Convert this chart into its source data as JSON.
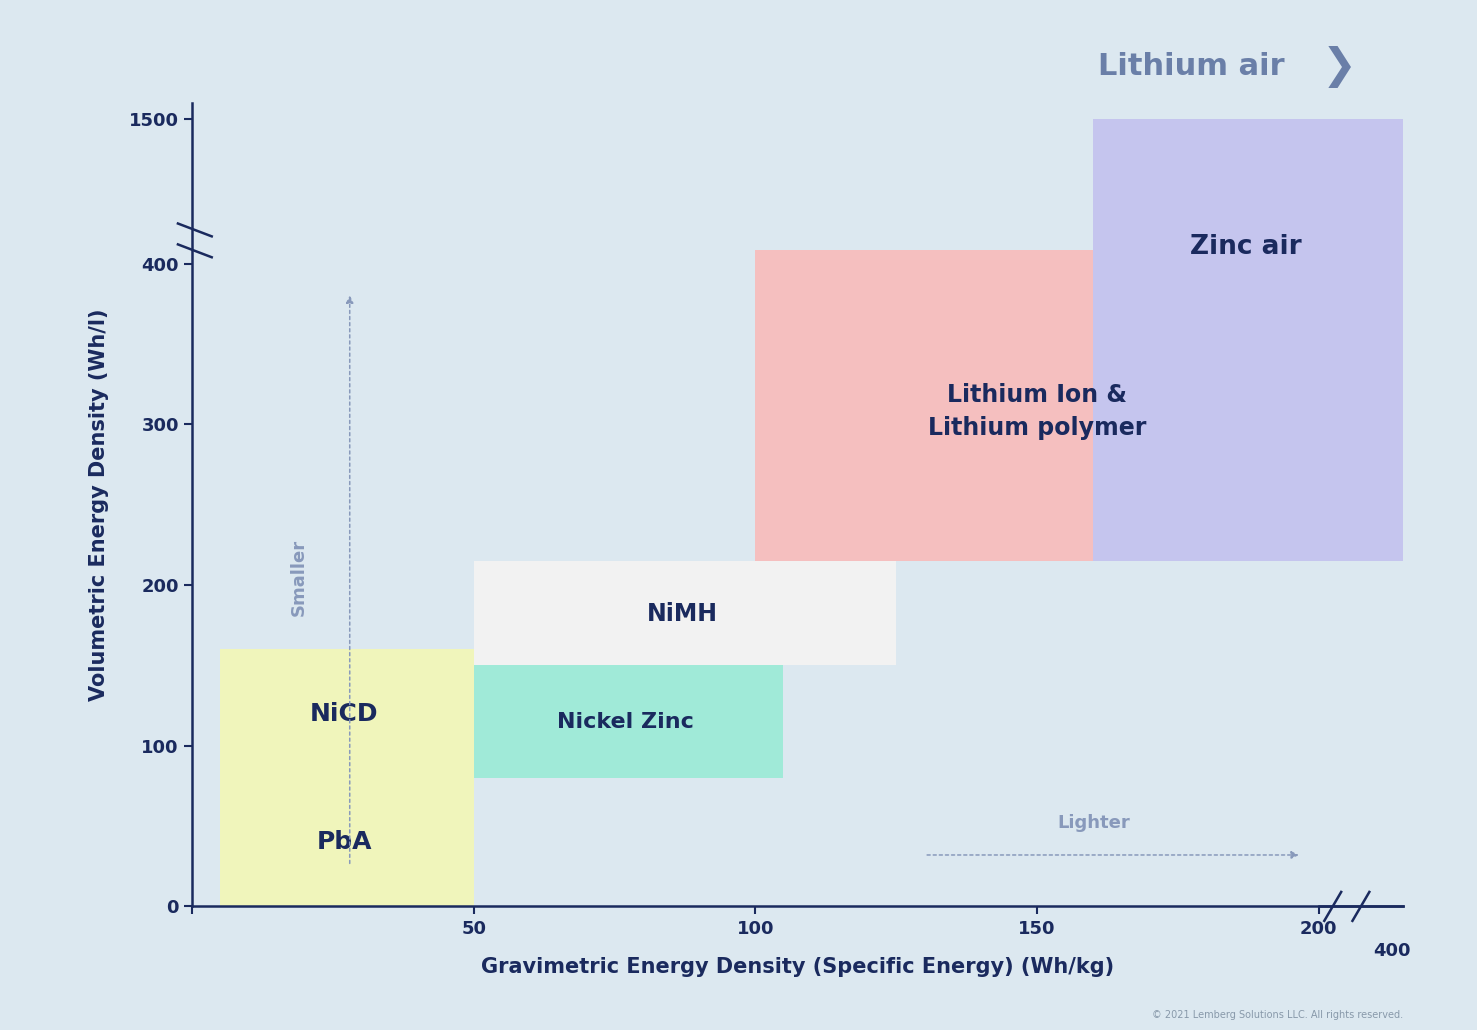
{
  "background_color": "#dce8f0",
  "xlabel": "Gravimetric Energy Density (Specific Energy) (Wh/kg)",
  "ylabel": "Volumetric Energy Density (Wh/l)",
  "axis_color": "#1a2a5e",
  "tick_color": "#1a2a5e",
  "label_color": "#1a2a5e",
  "annotation_color": "#8899bb",
  "lithium_air_label": "Lithium air",
  "lithium_air_color": "#6a7fa8",
  "smaller_label": "Smaller",
  "lighter_label": "Lighter",
  "copyright": "© 2021 Lemberg Solutions LLC. All rights reserved."
}
